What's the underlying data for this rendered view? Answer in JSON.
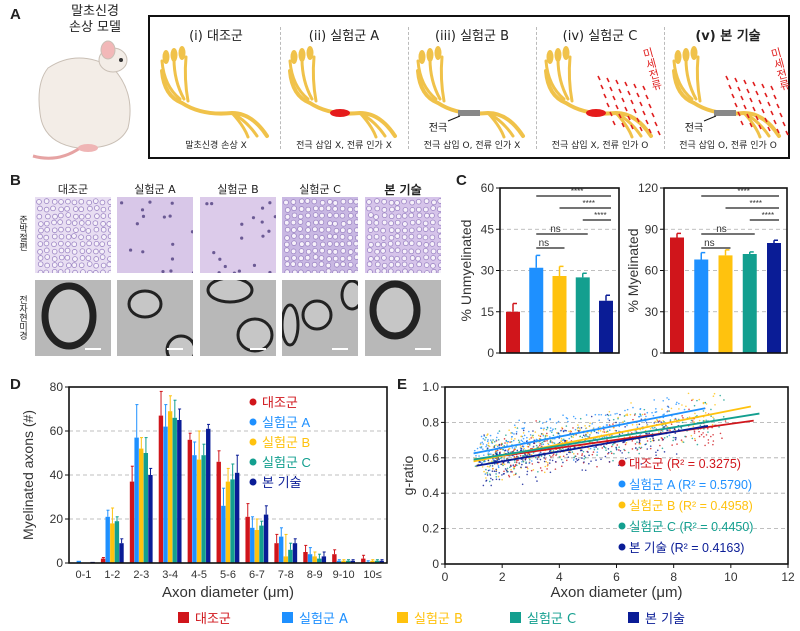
{
  "panel_labels": {
    "a": "A",
    "b": "B",
    "c": "C",
    "d": "D",
    "e": "E"
  },
  "colors": {
    "control": "#d0151b",
    "groupA": "#1e90ff",
    "groupB": "#ffc20e",
    "groupC": "#139f8f",
    "ours": "#0a1c96",
    "nerve": "#f0c24a",
    "electrode": "#888888"
  },
  "panelA": {
    "model_title": "말초신경\n손상 모델",
    "panels": [
      {
        "title": "(i) 대조군",
        "caption": "말초신경 손상 X",
        "injury": false,
        "electrode": false,
        "current": false
      },
      {
        "title": "(ii) 실험군 A",
        "caption": "전극 삽입 X, 전류 인가 X",
        "injury": true,
        "electrode": false,
        "current": false
      },
      {
        "title": "(iii) 실험군 B",
        "caption": "전극 삽입 O, 전류 인가 X",
        "injury": false,
        "electrode": true,
        "current": false
      },
      {
        "title": "(iv) 실험군 C",
        "caption": "전극 삽입 X, 전류 인가 O",
        "injury": true,
        "electrode": false,
        "current": true
      },
      {
        "title": "(v) 본 기술",
        "caption": "전극 삽입 O, 전류 인가 O",
        "injury": false,
        "electrode": true,
        "current": true
      }
    ],
    "electrode_label": "전극",
    "current_label": "미세전류"
  },
  "panelB": {
    "columns": [
      "대조군",
      "실험군 A",
      "실험군 B",
      "실험군 C",
      "본 기술"
    ],
    "rows": [
      "준박절편",
      "전자현미경"
    ]
  },
  "chart_data": [
    {
      "id": "C-left",
      "type": "bar",
      "ylabel": "% Unmyelinated",
      "ylim": [
        0,
        60
      ],
      "yticks": [
        0,
        15,
        30,
        45,
        60
      ],
      "grid": true,
      "categories": [
        "대조군",
        "실험군 A",
        "실험군 B",
        "실험군 C",
        "본 기술"
      ],
      "values": [
        15,
        31,
        28,
        27.5,
        19
      ],
      "errors": [
        3,
        4.5,
        3.5,
        1.5,
        2
      ],
      "significance": [
        {
          "from": 1,
          "to": 4,
          "label": "****"
        },
        {
          "from": 2,
          "to": 4,
          "label": "****"
        },
        {
          "from": 3,
          "to": 4,
          "label": "****"
        },
        {
          "from": 1,
          "to": 3,
          "label": "ns"
        },
        {
          "from": 1,
          "to": 2,
          "label": "ns"
        }
      ]
    },
    {
      "id": "C-right",
      "type": "bar",
      "ylabel": "% Myelinated",
      "ylim": [
        0,
        120
      ],
      "yticks": [
        0,
        30,
        60,
        90,
        120
      ],
      "grid": true,
      "categories": [
        "대조군",
        "실험군 A",
        "실험군 B",
        "실험군 C",
        "본 기술"
      ],
      "values": [
        84,
        68,
        71,
        72,
        80
      ],
      "errors": [
        3,
        5,
        4,
        1.5,
        2
      ],
      "significance": [
        {
          "from": 1,
          "to": 4,
          "label": "****"
        },
        {
          "from": 2,
          "to": 4,
          "label": "****"
        },
        {
          "from": 3,
          "to": 4,
          "label": "****"
        },
        {
          "from": 1,
          "to": 3,
          "label": "ns"
        },
        {
          "from": 1,
          "to": 2,
          "label": "ns"
        }
      ]
    },
    {
      "id": "D",
      "type": "bar",
      "xlabel": "Axon diameter (μm)",
      "ylabel": "Myelinated axons (#)",
      "ylim": [
        0,
        80
      ],
      "yticks": [
        0,
        20,
        40,
        60,
        80
      ],
      "grid": true,
      "legend": "top-right",
      "categories": [
        "0-1",
        "1-2",
        "2-3",
        "3-4",
        "4-5",
        "5-6",
        "6-7",
        "7-8",
        "8-9",
        "9-10",
        "10≤"
      ],
      "series": [
        {
          "name": "대조군",
          "values": [
            0,
            2,
            37,
            67,
            56,
            46,
            21,
            9,
            5,
            4,
            2
          ],
          "errors": [
            0,
            0.5,
            7,
            11,
            3,
            5,
            6,
            4,
            3,
            2,
            1.5
          ]
        },
        {
          "name": "실험군 A",
          "values": [
            1,
            21,
            57,
            62,
            49,
            26,
            16,
            12,
            4,
            1,
            0.5
          ],
          "errors": [
            0,
            3,
            15,
            10,
            6,
            8,
            5,
            4,
            3,
            0.5,
            0.5
          ]
        },
        {
          "name": "실험군 B",
          "values": [
            0,
            18,
            52,
            69,
            47,
            37,
            15,
            3,
            3,
            1,
            1
          ],
          "errors": [
            0,
            7,
            5,
            7,
            13,
            6,
            5,
            10,
            2,
            0.5,
            0.5
          ]
        },
        {
          "name": "실험군 C",
          "values": [
            0,
            19,
            50,
            66,
            49,
            38,
            17,
            6,
            2,
            1,
            1
          ],
          "errors": [
            0,
            2,
            7,
            8,
            5,
            7,
            2,
            3,
            2,
            0.5,
            0.5
          ]
        },
        {
          "name": "본 기술",
          "values": [
            0.5,
            9,
            40,
            65,
            61,
            41,
            22,
            9,
            3,
            1,
            1
          ],
          "errors": [
            0,
            2,
            3,
            5,
            2,
            8,
            4,
            2,
            2,
            0.5,
            0.5
          ]
        }
      ]
    },
    {
      "id": "E",
      "type": "scatter",
      "xlabel": "Axon diameter (μm)",
      "ylabel": "g-ratio",
      "xlim": [
        0,
        12
      ],
      "ylim": [
        0,
        1
      ],
      "xticks": [
        0,
        2,
        4,
        6,
        8,
        10,
        12
      ],
      "yticks": [
        0,
        0.2,
        0.4,
        0.6,
        0.8,
        1.0
      ],
      "grid": true,
      "legend": "bottom-right",
      "series": [
        {
          "name": "대조군",
          "label": "대조군 (R² = 0.3275)",
          "fit": [
            [
              1.5,
              0.6
            ],
            [
              10.8,
              0.81
            ]
          ]
        },
        {
          "name": "실험군 A",
          "label": "실험군 A (R² = 0.5790)",
          "fit": [
            [
              1.0,
              0.625
            ],
            [
              9.1,
              0.88
            ]
          ]
        },
        {
          "name": "실험군 B",
          "label": "실험군 B (R² = 0.4958)",
          "fit": [
            [
              1.0,
              0.58
            ],
            [
              10.7,
              0.89
            ]
          ]
        },
        {
          "name": "실험군 C",
          "label": "실험군 C (R² = 0.4450)",
          "fit": [
            [
              1.0,
              0.59
            ],
            [
              11.0,
              0.85
            ]
          ]
        },
        {
          "name": "본 기술",
          "label": "본 기술 (R² = 0.4163)",
          "fit": [
            [
              1.1,
              0.555
            ],
            [
              9.2,
              0.78
            ]
          ]
        }
      ]
    }
  ],
  "legend": [
    "대조군",
    "실험군 A",
    "실험군 B",
    "실험군 C",
    "본 기술"
  ]
}
